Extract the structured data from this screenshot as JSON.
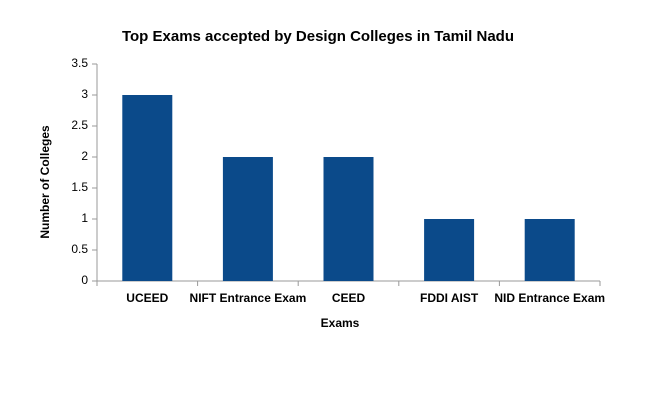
{
  "chart_data": {
    "type": "bar",
    "title": "Top Exams accepted by Design Colleges in Tamil Nadu",
    "x_label": "Exams",
    "y_label": "Number of Colleges",
    "categories": [
      "UCEED",
      "NIFT Entrance Exam",
      "CEED",
      "FDDI AIST",
      "NID Entrance Exam"
    ],
    "values": [
      3,
      2,
      2,
      1,
      1
    ],
    "color": "#0b4a8a",
    "ylim": [
      0,
      3.5
    ],
    "yticks": [
      0,
      0.5,
      1,
      1.5,
      2,
      2.5,
      3,
      3.5
    ],
    "grid": false
  }
}
